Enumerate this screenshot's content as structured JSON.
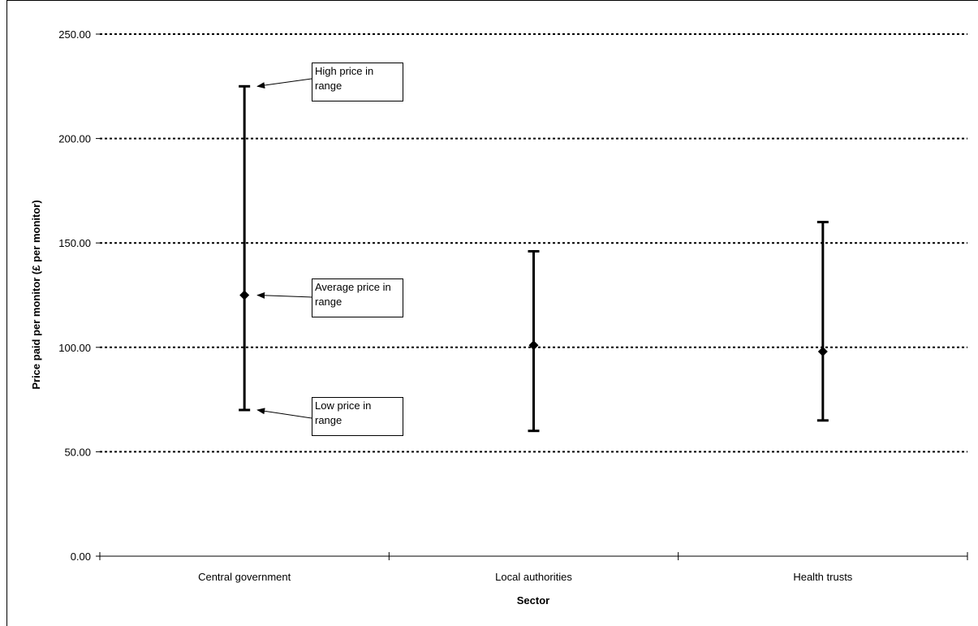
{
  "chart_data": {
    "type": "range",
    "xlabel": "Sector",
    "ylabel": "Price paid per monitor (£ per monitor)",
    "ylim": [
      0,
      250
    ],
    "yticks": [
      "0.00",
      "50.00",
      "100.00",
      "150.00",
      "200.00",
      "250.00"
    ],
    "grid": "dotted horizontal at 50-unit intervals",
    "categories": [
      "Central government",
      "Local authorities",
      "Health trusts"
    ],
    "high": [
      225,
      146,
      160
    ],
    "low": [
      70,
      60,
      65
    ],
    "average": [
      125,
      101,
      98
    ],
    "annotations": [
      {
        "text": "High price in range",
        "points_to": "high"
      },
      {
        "text": "Average price in range",
        "points_to": "average"
      },
      {
        "text": "Low price in range",
        "points_to": "low"
      }
    ]
  }
}
